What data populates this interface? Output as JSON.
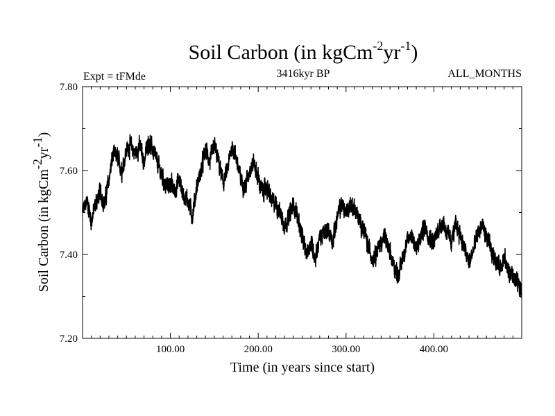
{
  "chart_data": {
    "type": "line",
    "title": {
      "main": "Soil Carbon (in kgCm",
      "exp1": "-2",
      "mid": "yr",
      "exp2": "-1",
      "end": ")"
    },
    "subtitle_left": "Expt = tFMde",
    "subtitle_center": "3416kyr BP",
    "subtitle_right": "ALL_MONTHS",
    "xlabel": "Time (in years since start)",
    "ylabel": {
      "main": "Soil Carbon (in kgCm",
      "exp1": "-2",
      "mid": "yr",
      "exp2": "-1",
      "end": ")"
    },
    "xlim": [
      0,
      500
    ],
    "ylim": [
      7.2,
      7.8
    ],
    "x_ticks": [
      100,
      200,
      300,
      400
    ],
    "x_tick_labels": [
      "100.00",
      "200.00",
      "300.00",
      "400.00"
    ],
    "y_ticks": [
      7.2,
      7.4,
      7.6,
      7.8
    ],
    "y_tick_labels": [
      "7.20",
      "7.40",
      "7.60",
      "7.80"
    ],
    "line_color": "#000000",
    "series": [
      {
        "name": "Soil Carbon",
        "x": [
          0,
          5,
          10,
          15,
          20,
          25,
          30,
          35,
          40,
          45,
          50,
          55,
          60,
          65,
          70,
          75,
          80,
          85,
          90,
          95,
          100,
          105,
          110,
          115,
          120,
          125,
          130,
          135,
          140,
          145,
          150,
          155,
          160,
          165,
          170,
          175,
          180,
          185,
          190,
          195,
          200,
          205,
          210,
          215,
          220,
          225,
          230,
          235,
          240,
          245,
          250,
          255,
          260,
          265,
          270,
          275,
          280,
          285,
          290,
          295,
          300,
          305,
          310,
          315,
          320,
          325,
          330,
          335,
          340,
          345,
          350,
          355,
          360,
          365,
          370,
          375,
          380,
          385,
          390,
          395,
          400,
          405,
          410,
          415,
          420,
          425,
          430,
          435,
          440,
          445,
          450,
          455,
          460,
          465,
          470,
          475,
          480,
          485,
          490,
          495,
          500
        ],
        "y": [
          7.5,
          7.53,
          7.48,
          7.52,
          7.55,
          7.52,
          7.58,
          7.64,
          7.63,
          7.6,
          7.65,
          7.66,
          7.64,
          7.66,
          7.62,
          7.67,
          7.65,
          7.62,
          7.59,
          7.56,
          7.57,
          7.55,
          7.58,
          7.54,
          7.53,
          7.49,
          7.56,
          7.6,
          7.65,
          7.62,
          7.66,
          7.62,
          7.57,
          7.6,
          7.66,
          7.63,
          7.58,
          7.56,
          7.6,
          7.62,
          7.58,
          7.55,
          7.56,
          7.53,
          7.52,
          7.5,
          7.47,
          7.49,
          7.52,
          7.49,
          7.44,
          7.4,
          7.43,
          7.39,
          7.44,
          7.45,
          7.46,
          7.43,
          7.49,
          7.52,
          7.5,
          7.52,
          7.51,
          7.48,
          7.46,
          7.42,
          7.39,
          7.41,
          7.43,
          7.44,
          7.4,
          7.37,
          7.35,
          7.4,
          7.43,
          7.45,
          7.41,
          7.44,
          7.47,
          7.44,
          7.43,
          7.46,
          7.48,
          7.45,
          7.43,
          7.47,
          7.45,
          7.41,
          7.38,
          7.41,
          7.45,
          7.47,
          7.44,
          7.41,
          7.39,
          7.37,
          7.39,
          7.36,
          7.35,
          7.33,
          7.32
        ]
      }
    ]
  }
}
